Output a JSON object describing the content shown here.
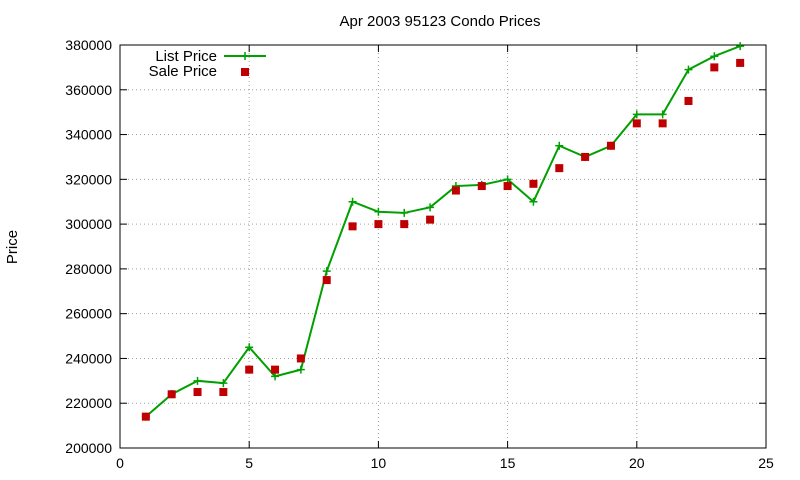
{
  "chart_data": {
    "type": "line",
    "title": "Apr 2003 95123 Condo Prices",
    "xlabel": "",
    "ylabel": "Price",
    "xlim": [
      0,
      25
    ],
    "ylim": [
      200000,
      380000
    ],
    "x_ticks": [
      0,
      5,
      10,
      15,
      20,
      25
    ],
    "y_ticks": [
      200000,
      220000,
      240000,
      260000,
      280000,
      300000,
      320000,
      340000,
      360000,
      380000
    ],
    "grid": true,
    "legend_position": "top-left",
    "series": [
      {
        "name": "List Price",
        "style": "line-with-plus-markers",
        "color": "#00a000",
        "x": [
          1,
          2,
          3,
          4,
          5,
          6,
          7,
          8,
          9,
          10,
          11,
          12,
          13,
          14,
          15,
          16,
          17,
          18,
          19,
          20,
          21,
          22,
          23,
          24
        ],
        "values": [
          214000,
          224000,
          230000,
          229000,
          245000,
          232000,
          235000,
          279000,
          310000,
          305500,
          305000,
          307500,
          317000,
          317500,
          320000,
          310000,
          335000,
          330000,
          335000,
          349000,
          349000,
          369000,
          375000,
          379500
        ]
      },
      {
        "name": "Sale Price",
        "style": "square-markers",
        "color": "#c00000",
        "x": [
          1,
          2,
          3,
          4,
          5,
          6,
          7,
          8,
          9,
          10,
          11,
          12,
          13,
          14,
          15,
          16,
          17,
          18,
          19,
          20,
          21,
          22,
          23,
          24
        ],
        "values": [
          214000,
          224000,
          225000,
          225000,
          235000,
          235000,
          240000,
          275000,
          299000,
          300000,
          300000,
          302000,
          315000,
          317000,
          317000,
          318000,
          325000,
          330000,
          335000,
          345000,
          345000,
          355000,
          370000,
          372000
        ]
      }
    ]
  }
}
